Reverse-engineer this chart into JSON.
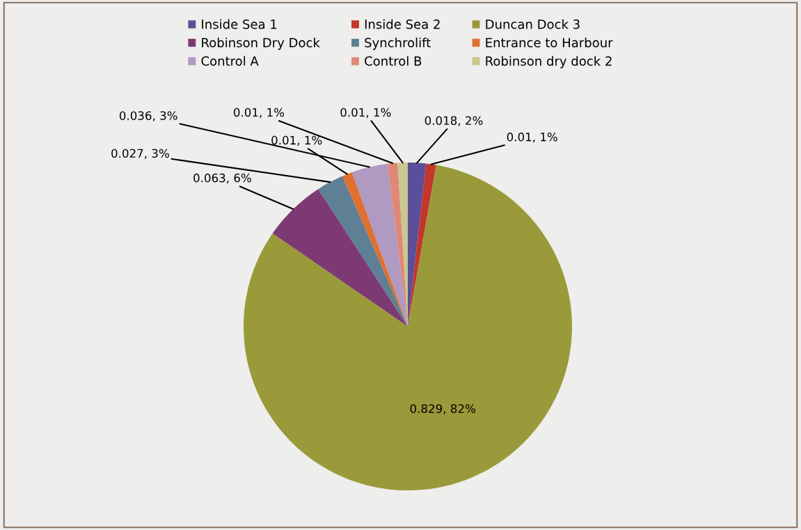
{
  "chart_data": {
    "type": "pie",
    "categories": [
      "Inside Sea 1",
      "Inside Sea 2",
      "Duncan Dock 3",
      "Robinson Dry Dock",
      "Synchrolift",
      "Entrance to Harbour",
      "Control A",
      "Control B",
      "Robinson dry dock 2"
    ],
    "values": [
      0.018,
      0.01,
      0.829,
      0.063,
      0.027,
      0.01,
      0.036,
      0.01,
      0.01
    ],
    "colors": [
      "#5b4f9a",
      "#c4362c",
      "#9a9a3a",
      "#7d3a72",
      "#5f7f94",
      "#e07030",
      "#b09ac2",
      "#e08878",
      "#c8c890"
    ],
    "value_labels": [
      "0.018, 2%",
      "0.01, 1%",
      "0.829, 82%",
      "0.063, 6%",
      "0.027, 3%",
      "0.01, 1%",
      "0.036, 3%",
      "0.01, 1%",
      "0.01, 1%"
    ],
    "legend": "top"
  }
}
